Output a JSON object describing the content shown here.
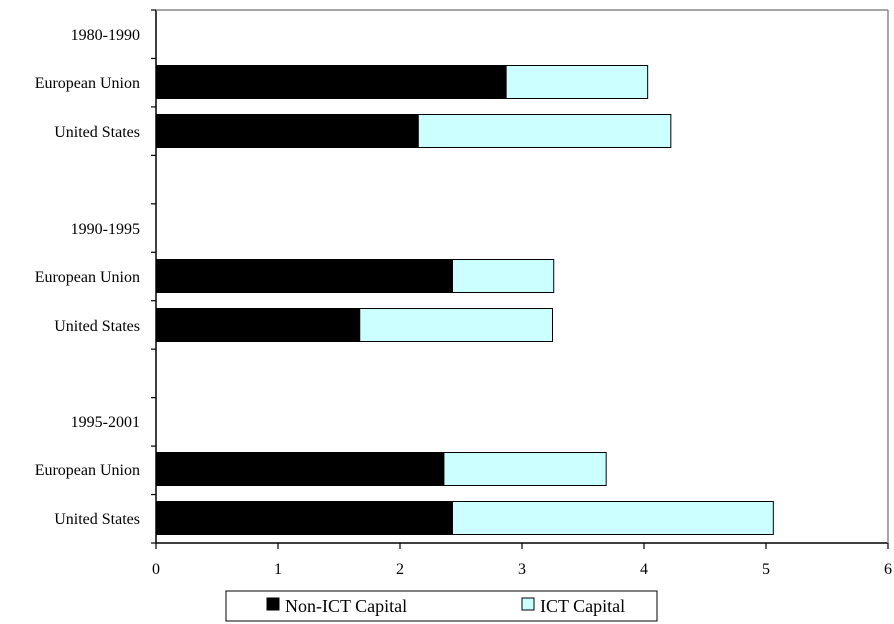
{
  "chart_data": {
    "type": "bar",
    "orientation": "horizontal",
    "stacked": true,
    "groups": [
      {
        "label": "1980-1990",
        "rows": [
          {
            "label": "European Union",
            "values": [
              2.87,
              1.16
            ]
          },
          {
            "label": "United States",
            "values": [
              2.15,
              2.07
            ]
          }
        ]
      },
      {
        "label": "1990-1995",
        "rows": [
          {
            "label": "European Union",
            "values": [
              2.43,
              0.83
            ]
          },
          {
            "label": "United States",
            "values": [
              1.67,
              1.58
            ]
          }
        ]
      },
      {
        "label": "1995-2001",
        "rows": [
          {
            "label": "European Union",
            "values": [
              2.36,
              1.33
            ]
          },
          {
            "label": "United States",
            "values": [
              2.43,
              2.63
            ]
          }
        ]
      }
    ],
    "series": [
      {
        "name": "Non-ICT Capital",
        "color": "#000000"
      },
      {
        "name": "ICT Capital",
        "color": "#ccffff"
      }
    ],
    "xlim": [
      0,
      6
    ],
    "xticks": [
      "0",
      "1",
      "2",
      "3",
      "4",
      "5",
      "6"
    ],
    "grid": false,
    "legend_position": "bottom"
  }
}
